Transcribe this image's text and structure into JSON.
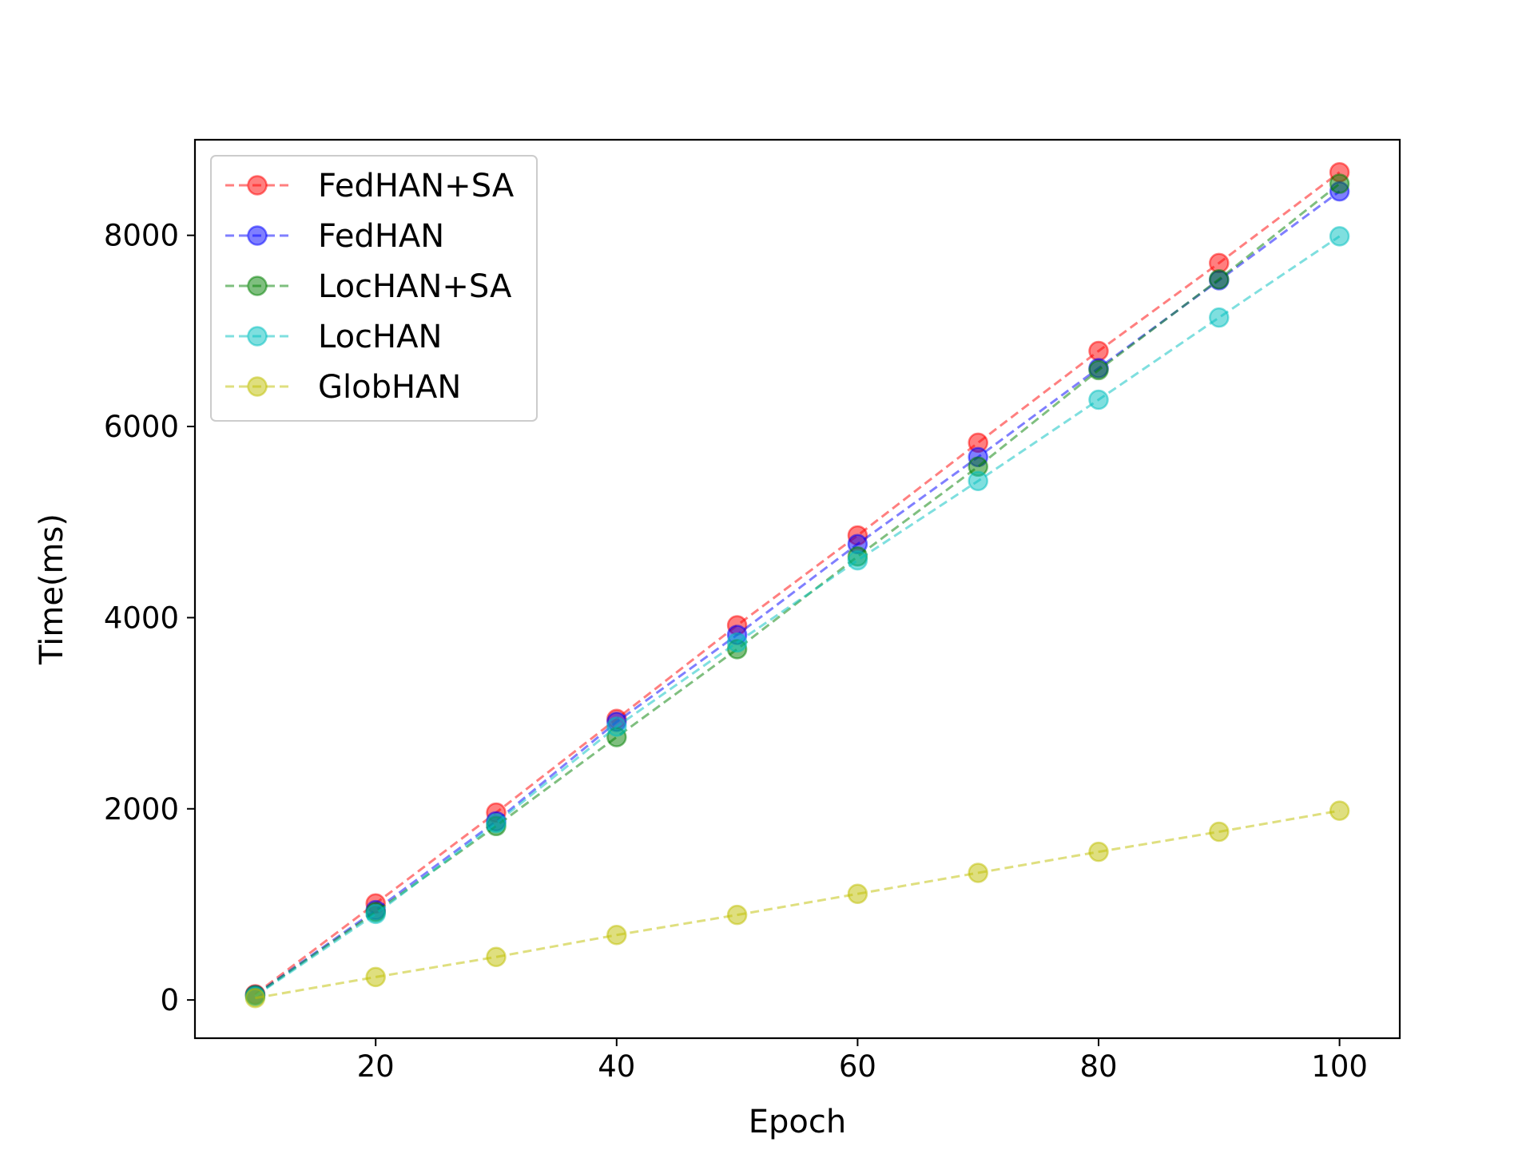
{
  "chart_data": {
    "type": "line",
    "title": "",
    "xlabel": "Epoch",
    "ylabel": "Time(ms)",
    "xlim": [
      5,
      105
    ],
    "ylim": [
      -400,
      9000
    ],
    "xticks": [
      20,
      40,
      60,
      80,
      100
    ],
    "yticks": [
      0,
      2000,
      4000,
      6000,
      8000
    ],
    "grid": false,
    "legend_position": "top-left",
    "x": [
      10,
      20,
      30,
      40,
      50,
      60,
      70,
      80,
      90,
      100
    ],
    "series": [
      {
        "name": "FedHAN+SA",
        "color": "#ff0000",
        "values": [
          60,
          1010,
          1960,
          2940,
          3920,
          4860,
          5830,
          6790,
          7710,
          8660
        ]
      },
      {
        "name": "FedHAN",
        "color": "#0000ff",
        "values": [
          50,
          940,
          1870,
          2910,
          3820,
          4770,
          5680,
          6610,
          7530,
          8460
        ]
      },
      {
        "name": "LocHAN+SA",
        "color": "#008000",
        "values": [
          50,
          920,
          1820,
          2750,
          3670,
          4640,
          5580,
          6590,
          7540,
          8540
        ]
      },
      {
        "name": "LocHAN",
        "color": "#00bfbf",
        "values": [
          40,
          900,
          1850,
          2860,
          3740,
          4600,
          5430,
          6280,
          7140,
          7990
        ]
      },
      {
        "name": "GlobHAN",
        "color": "#bfbf00",
        "values": [
          20,
          240,
          450,
          680,
          890,
          1110,
          1330,
          1550,
          1760,
          1980
        ]
      }
    ]
  }
}
